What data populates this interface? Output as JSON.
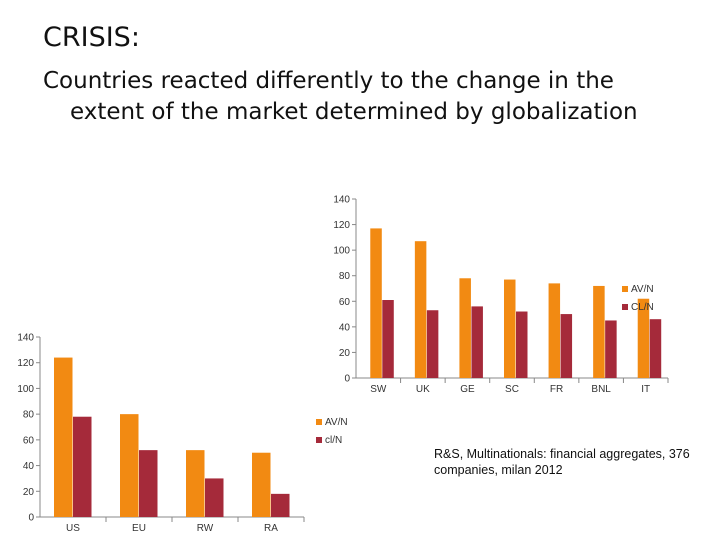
{
  "slide": {
    "title": "CRISIS:",
    "subtitle_line1": "Countries reacted differently to the change in the",
    "subtitle_line2": "extent of the market determined by globalization",
    "citation": "R&S, Multinationals: financial aggregates, 376 companies, milan 2012"
  },
  "colors": {
    "orange": "#F28A12",
    "red": "#A52A3A",
    "axis": "#888888"
  },
  "chart_data": [
    {
      "type": "bar",
      "categories": [
        "SW",
        "UK",
        "GE",
        "SC",
        "FR",
        "BNL",
        "IT"
      ],
      "ylim": [
        0,
        140
      ],
      "yticks": [
        0,
        20,
        40,
        60,
        80,
        100,
        120,
        140
      ],
      "legend_position": "right",
      "series": [
        {
          "name": "AV/N",
          "color": "#F28A12",
          "values": [
            117,
            107,
            78,
            77,
            74,
            72,
            62
          ]
        },
        {
          "name": "CL/N",
          "color": "#A52A3A",
          "values": [
            61,
            53,
            56,
            52,
            50,
            45,
            46
          ]
        }
      ]
    },
    {
      "type": "bar",
      "categories": [
        "US",
        "EU",
        "RW",
        "RA"
      ],
      "ylim": [
        0,
        140
      ],
      "yticks": [
        0,
        20,
        40,
        60,
        80,
        100,
        120,
        140
      ],
      "legend_position": "right",
      "series": [
        {
          "name": "AV/N",
          "color": "#F28A12",
          "values": [
            124,
            80,
            52,
            50
          ]
        },
        {
          "name": "cl/N",
          "color": "#A52A3A",
          "values": [
            78,
            52,
            30,
            18
          ]
        }
      ]
    }
  ]
}
